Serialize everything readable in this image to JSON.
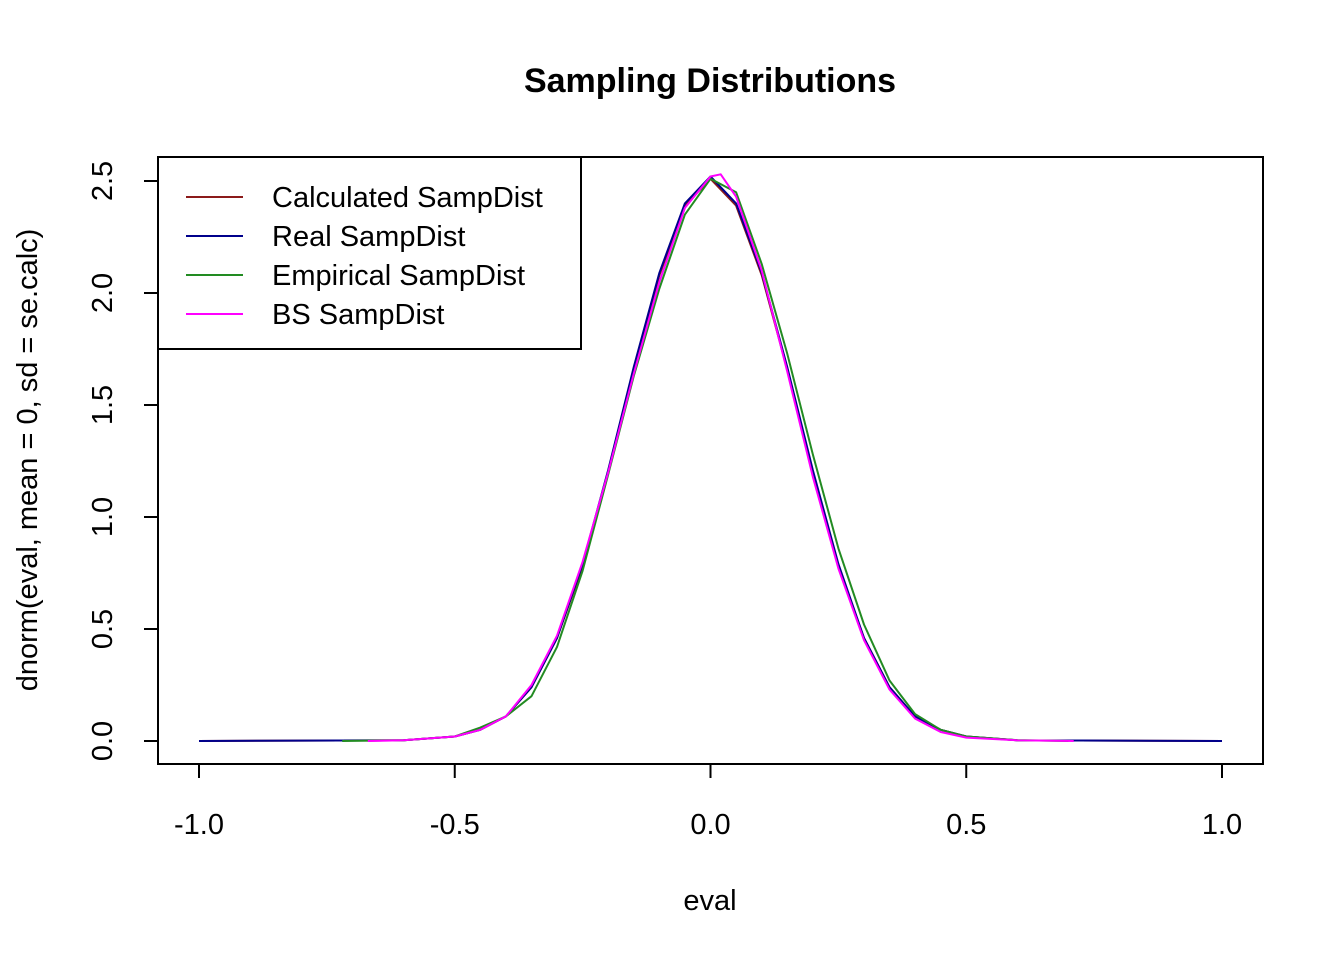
{
  "chart_data": {
    "type": "line",
    "title": "Sampling Distributions",
    "xlabel": "eval",
    "ylabel": "dnorm(eval, mean = 0, sd = se.calc)",
    "xlim": [
      -1.0,
      1.0
    ],
    "ylim": [
      0.0,
      2.5
    ],
    "xticks": [
      -1.0,
      -0.5,
      0.0,
      0.5,
      1.0
    ],
    "xtick_labels": [
      "-1.0",
      "-0.5",
      "0.0",
      "0.5",
      "1.0"
    ],
    "yticks": [
      0.0,
      0.5,
      1.0,
      1.5,
      2.0,
      2.5
    ],
    "ytick_labels": [
      "0.0",
      "0.5",
      "1.0",
      "1.5",
      "2.0",
      "2.5"
    ],
    "legend_position": "top-left",
    "grid": false,
    "series": [
      {
        "name": "Calculated SampDist",
        "color": "#8B1A1A",
        "x": [
          -1.0,
          -0.6,
          -0.5,
          -0.45,
          -0.4,
          -0.35,
          -0.3,
          -0.25,
          -0.2,
          -0.15,
          -0.1,
          -0.05,
          0.0,
          0.05,
          0.1,
          0.15,
          0.2,
          0.25,
          0.3,
          0.35,
          0.4,
          0.45,
          0.5,
          0.6,
          1.0
        ],
        "y": [
          0.0,
          0.003,
          0.02,
          0.05,
          0.11,
          0.24,
          0.46,
          0.78,
          1.2,
          1.66,
          2.08,
          2.39,
          2.51,
          2.39,
          2.08,
          1.66,
          1.2,
          0.78,
          0.46,
          0.24,
          0.11,
          0.05,
          0.02,
          0.003,
          0.0
        ]
      },
      {
        "name": "Real SampDist",
        "color": "#00008B",
        "x": [
          -1.0,
          -0.6,
          -0.5,
          -0.45,
          -0.4,
          -0.35,
          -0.3,
          -0.25,
          -0.2,
          -0.15,
          -0.1,
          -0.05,
          0.0,
          0.05,
          0.1,
          0.15,
          0.2,
          0.25,
          0.3,
          0.35,
          0.4,
          0.45,
          0.5,
          0.6,
          1.0
        ],
        "y": [
          0.0,
          0.003,
          0.02,
          0.05,
          0.11,
          0.24,
          0.46,
          0.79,
          1.21,
          1.67,
          2.09,
          2.4,
          2.52,
          2.4,
          2.09,
          1.67,
          1.21,
          0.79,
          0.46,
          0.24,
          0.11,
          0.05,
          0.02,
          0.003,
          0.0
        ]
      },
      {
        "name": "Empirical SampDist",
        "color": "#228B22",
        "x": [
          -0.72,
          -0.6,
          -0.5,
          -0.45,
          -0.4,
          -0.35,
          -0.3,
          -0.25,
          -0.2,
          -0.15,
          -0.1,
          -0.05,
          0.0,
          0.05,
          0.1,
          0.15,
          0.2,
          0.25,
          0.3,
          0.35,
          0.4,
          0.45,
          0.5,
          0.6,
          0.7
        ],
        "y": [
          0.0,
          0.003,
          0.02,
          0.06,
          0.11,
          0.2,
          0.42,
          0.76,
          1.19,
          1.63,
          2.02,
          2.35,
          2.51,
          2.45,
          2.13,
          1.73,
          1.28,
          0.86,
          0.52,
          0.27,
          0.12,
          0.05,
          0.02,
          0.004,
          0.0
        ]
      },
      {
        "name": "BS SampDist",
        "color": "#FF00FF",
        "x": [
          -0.67,
          -0.6,
          -0.5,
          -0.45,
          -0.4,
          -0.35,
          -0.3,
          -0.25,
          -0.2,
          -0.15,
          -0.1,
          -0.05,
          0.0,
          0.02,
          0.05,
          0.1,
          0.15,
          0.2,
          0.25,
          0.3,
          0.35,
          0.4,
          0.45,
          0.5,
          0.6,
          0.71
        ],
        "y": [
          0.0,
          0.003,
          0.02,
          0.05,
          0.11,
          0.25,
          0.47,
          0.8,
          1.2,
          1.64,
          2.05,
          2.38,
          2.52,
          2.53,
          2.43,
          2.1,
          1.65,
          1.18,
          0.77,
          0.45,
          0.23,
          0.1,
          0.04,
          0.015,
          0.003,
          0.0
        ]
      }
    ]
  }
}
